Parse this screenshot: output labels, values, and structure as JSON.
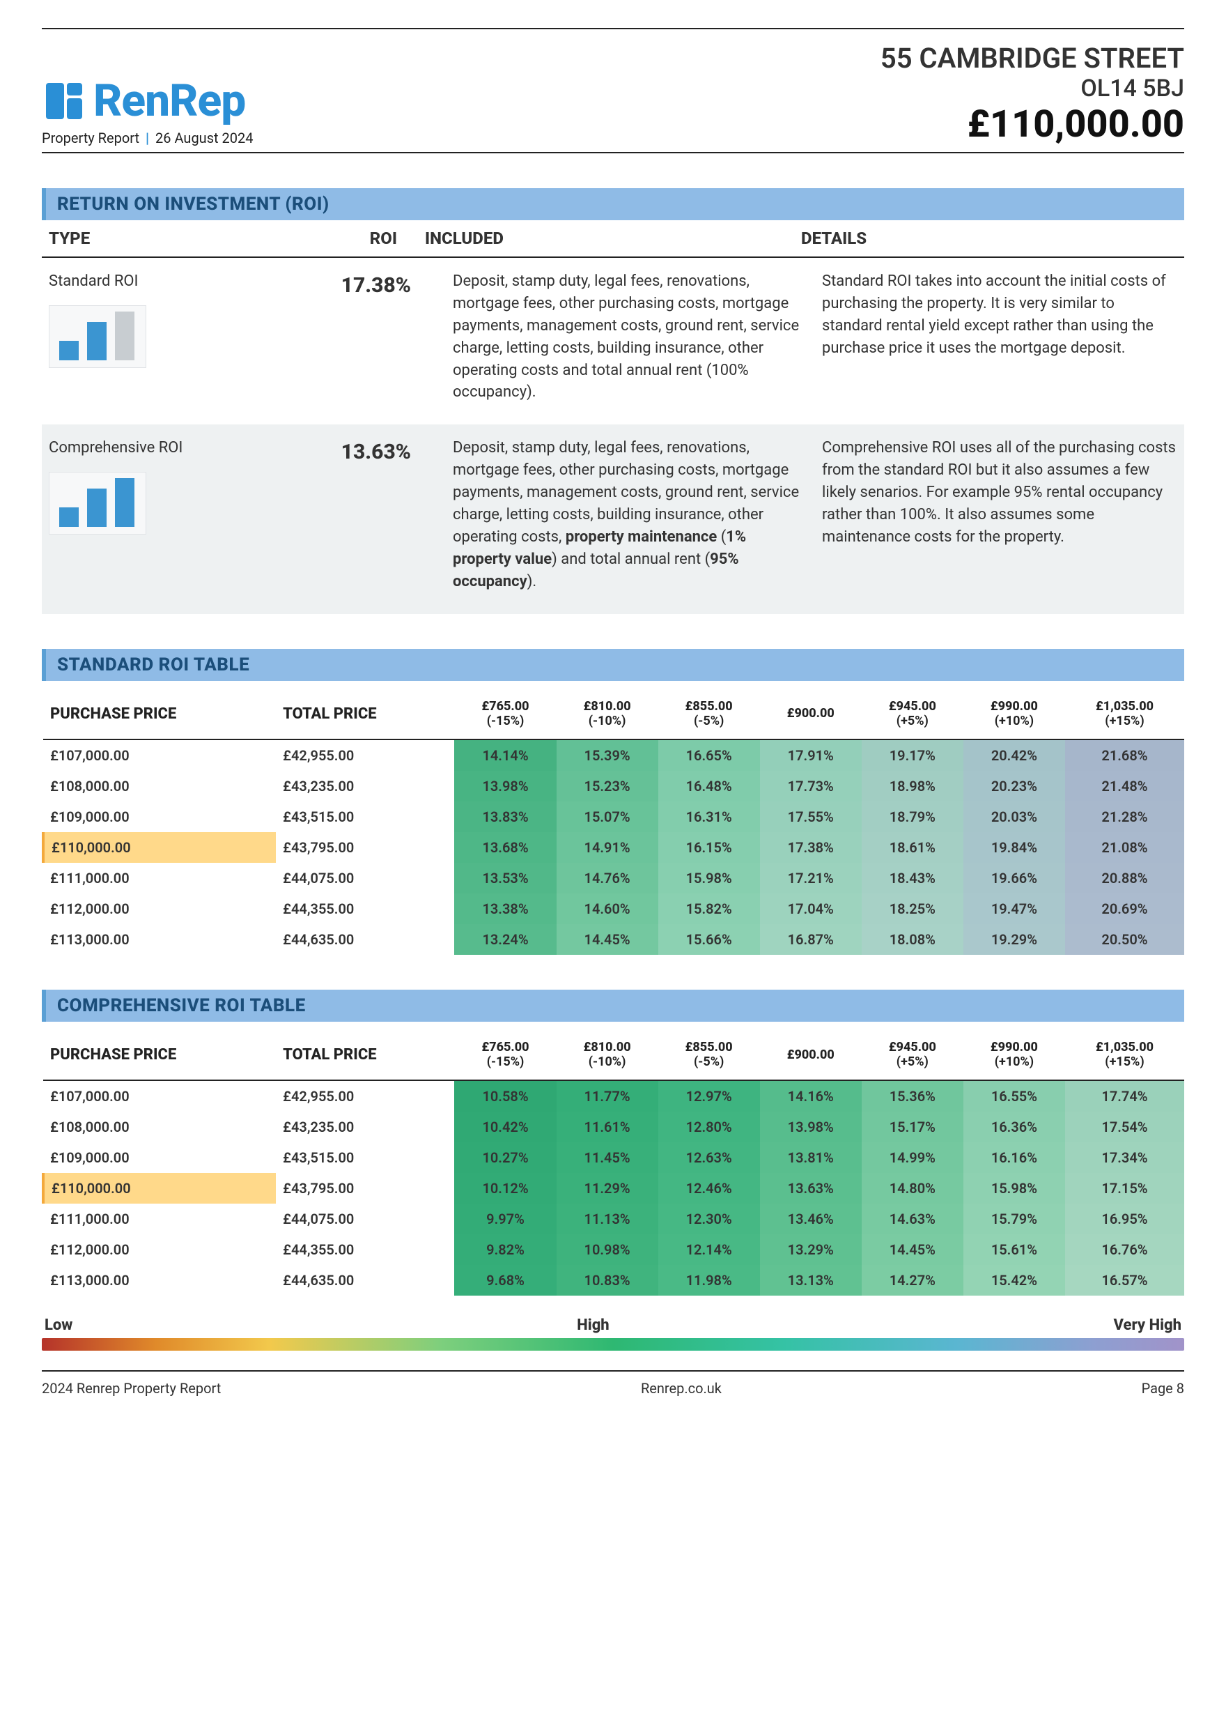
{
  "brand": "RenRep",
  "subline_left": "Property Report",
  "subline_date": "26 August 2024",
  "address_line1": "55 CAMBRIDGE STREET",
  "address_line2": "OL14 5BJ",
  "price": "£110,000.00",
  "roi_section_title": "RETURN ON INVESTMENT (ROI)",
  "roi_headers": {
    "type": "TYPE",
    "roi": "ROI",
    "included": "INCLUDED",
    "details": "DETAILS"
  },
  "roi_rows": [
    {
      "type": "Standard ROI",
      "value": "17.38%",
      "included": "Deposit, stamp duty, legal fees, renovations, mortgage fees, other purchasing costs, mortgage payments, management costs, ground rent, service charge, letting costs, building insurance, other operating costs and total annual rent (100% occupancy).",
      "details": "Standard ROI takes into account the initial costs of purchasing the property. It is very similar to standard rental yield except rather than using the purchase price it uses the mortgage deposit.",
      "bars": [
        {
          "h": 28,
          "c": "blue"
        },
        {
          "h": 55,
          "c": "blue"
        },
        {
          "h": 70,
          "c": "grey"
        }
      ]
    },
    {
      "type": "Comprehensive ROI",
      "value": "13.63%",
      "included_html": "Deposit, stamp duty, legal fees, renovations, mortgage fees, other purchasing costs, mortgage payments, management costs, ground rent, service charge, letting costs, building insurance, other operating costs, <b>property maintenance</b> (<b>1% property value</b>) and total annual rent (<b>95% occupancy</b>).",
      "details": "Comprehensive ROI uses all of the purchasing costs from the standard ROI but it also assumes a few likely senarios. For example 95% rental occupancy rather than 100%. It also assumes some maintenance costs for the property.",
      "bars": [
        {
          "h": 28,
          "c": "blue"
        },
        {
          "h": 55,
          "c": "blue"
        },
        {
          "h": 70,
          "c": "blue"
        }
      ]
    }
  ],
  "std_table_title": "STANDARD ROI TABLE",
  "comp_table_title": "COMPREHENSIVE ROI TABLE",
  "col_purchase": "PURCHASE PRICE",
  "col_total": "TOTAL PRICE",
  "price_cols": [
    {
      "p": "£765.00",
      "d": "(-15%)"
    },
    {
      "p": "£810.00",
      "d": "(-10%)"
    },
    {
      "p": "£855.00",
      "d": "(-5%)"
    },
    {
      "p": "£900.00",
      "d": ""
    },
    {
      "p": "£945.00",
      "d": "(+5%)"
    },
    {
      "p": "£990.00",
      "d": "(+10%)"
    },
    {
      "p": "£1,035.00",
      "d": "(+15%)"
    }
  ],
  "std_rows": [
    {
      "pp": "£107,000.00",
      "tp": "£42,955.00",
      "v": [
        "14.14%",
        "15.39%",
        "16.65%",
        "17.91%",
        "19.17%",
        "20.42%",
        "21.68%"
      ],
      "c": [
        "#45b281",
        "#62c096",
        "#7dcba9",
        "#93cfb9",
        "#9fccc1",
        "#a4c3c9",
        "#a6b6cb"
      ]
    },
    {
      "pp": "£108,000.00",
      "tp": "£43,235.00",
      "v": [
        "13.98%",
        "15.23%",
        "16.48%",
        "17.73%",
        "18.98%",
        "20.23%",
        "21.48%"
      ],
      "c": [
        "#48b483",
        "#65c197",
        "#80ccab",
        "#95d0ba",
        "#a1cdc2",
        "#a5c4ca",
        "#a7b7cc"
      ]
    },
    {
      "pp": "£109,000.00",
      "tp": "£43,515.00",
      "v": [
        "13.83%",
        "15.07%",
        "16.31%",
        "17.55%",
        "18.79%",
        "20.03%",
        "21.28%"
      ],
      "c": [
        "#4bb585",
        "#68c399",
        "#82cdac",
        "#97d0bb",
        "#a2cec3",
        "#a6c5ca",
        "#a8b8cc"
      ]
    },
    {
      "pp": "£110,000.00",
      "tp": "£43,795.00",
      "v": [
        "13.68%",
        "14.91%",
        "16.15%",
        "17.38%",
        "18.61%",
        "19.84%",
        "21.08%"
      ],
      "c": [
        "#4eb787",
        "#6bc49b",
        "#85ceae",
        "#99d1bc",
        "#a4cfc4",
        "#a7c5cb",
        "#a9b9cd"
      ],
      "hl": true
    },
    {
      "pp": "£111,000.00",
      "tp": "£44,075.00",
      "v": [
        "13.53%",
        "14.76%",
        "15.98%",
        "17.21%",
        "18.43%",
        "19.66%",
        "20.88%"
      ],
      "c": [
        "#51b889",
        "#6ec59c",
        "#87cfaf",
        "#9bd2bd",
        "#a5d0c5",
        "#a8c6cb",
        "#aabacd"
      ]
    },
    {
      "pp": "£112,000.00",
      "tp": "£44,355.00",
      "v": [
        "13.38%",
        "14.60%",
        "15.82%",
        "17.04%",
        "18.25%",
        "19.47%",
        "20.69%"
      ],
      "c": [
        "#54ba8b",
        "#71c79e",
        "#8ad0b1",
        "#9dd3be",
        "#a7d1c6",
        "#a9c7cc",
        "#abbbce"
      ]
    },
    {
      "pp": "£113,000.00",
      "tp": "£44,635.00",
      "v": [
        "13.24%",
        "14.45%",
        "15.66%",
        "16.87%",
        "18.08%",
        "19.29%",
        "20.50%"
      ],
      "c": [
        "#57bb8d",
        "#74c8a0",
        "#8cd1b2",
        "#9fd4bf",
        "#a8d2c7",
        "#aac8cc",
        "#acbcce"
      ]
    }
  ],
  "comp_rows": [
    {
      "pp": "£107,000.00",
      "tp": "£42,955.00",
      "v": [
        "10.58%",
        "11.77%",
        "12.97%",
        "14.16%",
        "15.36%",
        "16.55%",
        "17.74%"
      ],
      "c": [
        "#2fa873",
        "#34ae78",
        "#3eb480",
        "#55bc8c",
        "#70c69d",
        "#88ceae",
        "#9ad1ba"
      ]
    },
    {
      "pp": "£108,000.00",
      "tp": "£43,235.00",
      "v": [
        "10.42%",
        "11.61%",
        "12.80%",
        "13.98%",
        "15.17%",
        "16.36%",
        "17.54%"
      ],
      "c": [
        "#30a974",
        "#36af79",
        "#40b581",
        "#57bd8d",
        "#72c79e",
        "#8acfaf",
        "#9cd2bb"
      ]
    },
    {
      "pp": "£109,000.00",
      "tp": "£43,515.00",
      "v": [
        "10.27%",
        "11.45%",
        "12.63%",
        "13.81%",
        "14.99%",
        "16.16%",
        "17.34%"
      ],
      "c": [
        "#31aa75",
        "#38b07a",
        "#42b682",
        "#59be8e",
        "#74c89f",
        "#8cd0b0",
        "#9ed3bc"
      ]
    },
    {
      "pp": "£110,000.00",
      "tp": "£43,795.00",
      "v": [
        "10.12%",
        "11.29%",
        "12.46%",
        "13.63%",
        "14.80%",
        "15.98%",
        "17.15%"
      ],
      "c": [
        "#32ab76",
        "#3ab17b",
        "#44b783",
        "#5bbf8f",
        "#76c9a0",
        "#8ed1b1",
        "#a0d4bd"
      ],
      "hl": true
    },
    {
      "pp": "£111,000.00",
      "tp": "£44,075.00",
      "v": [
        "9.97%",
        "11.13%",
        "12.30%",
        "13.46%",
        "14.63%",
        "15.79%",
        "16.95%"
      ],
      "c": [
        "#33ac77",
        "#3cb27c",
        "#46b884",
        "#5dc090",
        "#78caa1",
        "#90d2b2",
        "#a2d5be"
      ]
    },
    {
      "pp": "£112,000.00",
      "tp": "£44,355.00",
      "v": [
        "9.82%",
        "10.98%",
        "12.14%",
        "13.29%",
        "14.45%",
        "15.61%",
        "16.76%"
      ],
      "c": [
        "#34ad78",
        "#3eb37d",
        "#48b985",
        "#5fc191",
        "#7acba2",
        "#92d3b3",
        "#a4d6bf"
      ]
    },
    {
      "pp": "£113,000.00",
      "tp": "£44,635.00",
      "v": [
        "9.68%",
        "10.83%",
        "11.98%",
        "13.13%",
        "14.27%",
        "15.42%",
        "16.57%"
      ],
      "c": [
        "#35ae79",
        "#40b47e",
        "#4aba86",
        "#61c292",
        "#7ccca3",
        "#94d4b4",
        "#a6d7c0"
      ]
    }
  ],
  "legend": {
    "low": "Low",
    "high": "High",
    "vhigh": "Very High"
  },
  "footer": {
    "left": "2024 Renrep Property Report",
    "center": "Renrep.co.uk",
    "right": "Page 8"
  }
}
